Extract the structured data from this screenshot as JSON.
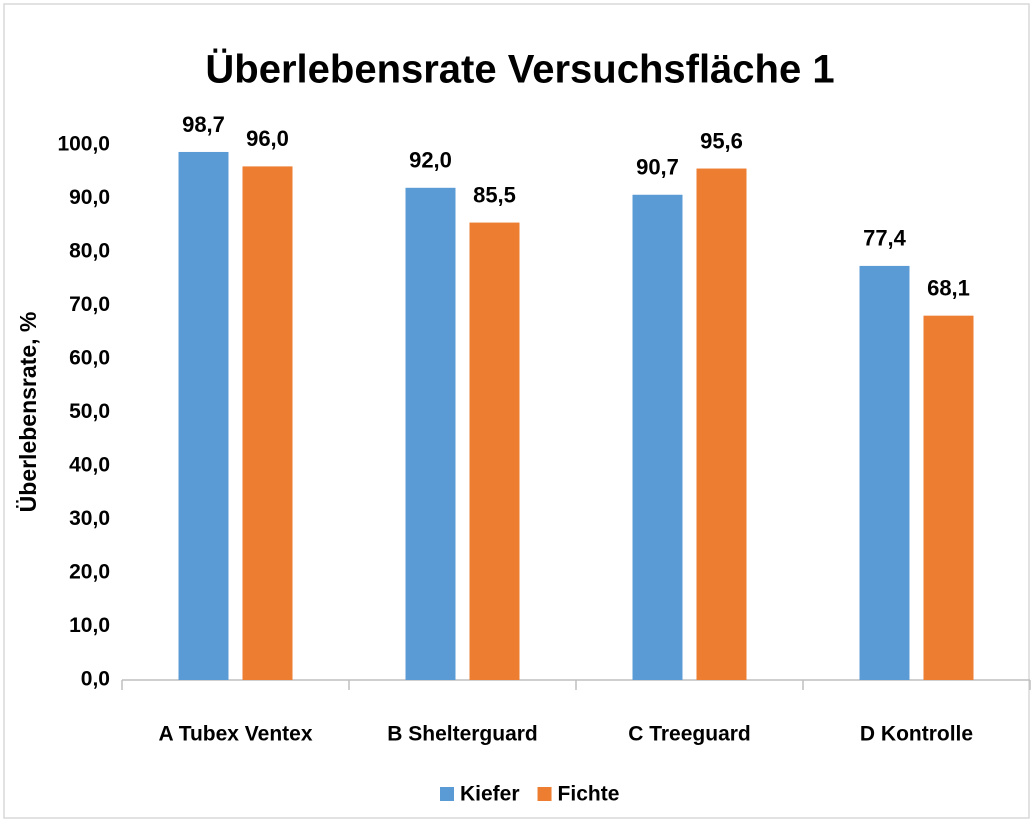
{
  "chart_data": {
    "type": "bar",
    "title": "Überlebensrate Versuchsfläche 1",
    "y_label": "Überlebensrate, %",
    "categories": [
      "A Tubex Ventex",
      "B Shelterguard",
      "C Treeguard",
      "D Kontrolle"
    ],
    "series": [
      {
        "name": "Kiefer",
        "color": "#5b9bd5",
        "values": [
          98.7,
          92.0,
          90.7,
          77.4
        ],
        "value_labels": [
          "98,7",
          "92,0",
          "90,7",
          "77,4"
        ]
      },
      {
        "name": "Fichte",
        "color": "#ed7d31",
        "values": [
          96.0,
          85.5,
          95.6,
          68.1
        ],
        "value_labels": [
          "96,0",
          "85,5",
          "95,6",
          "68,1"
        ]
      }
    ],
    "ylim": [
      0,
      100
    ],
    "yticks": [
      {
        "value": 0,
        "label": "0,0"
      },
      {
        "value": 10,
        "label": "10,0"
      },
      {
        "value": 20,
        "label": "20,0"
      },
      {
        "value": 30,
        "label": "30,0"
      },
      {
        "value": 40,
        "label": "40,0"
      },
      {
        "value": 50,
        "label": "50,0"
      },
      {
        "value": 60,
        "label": "60,0"
      },
      {
        "value": 70,
        "label": "70,0"
      },
      {
        "value": 80,
        "label": "80,0"
      },
      {
        "value": 90,
        "label": "90,0"
      },
      {
        "value": 100,
        "label": "100,0"
      }
    ],
    "grid": false,
    "legend": "bottom"
  }
}
